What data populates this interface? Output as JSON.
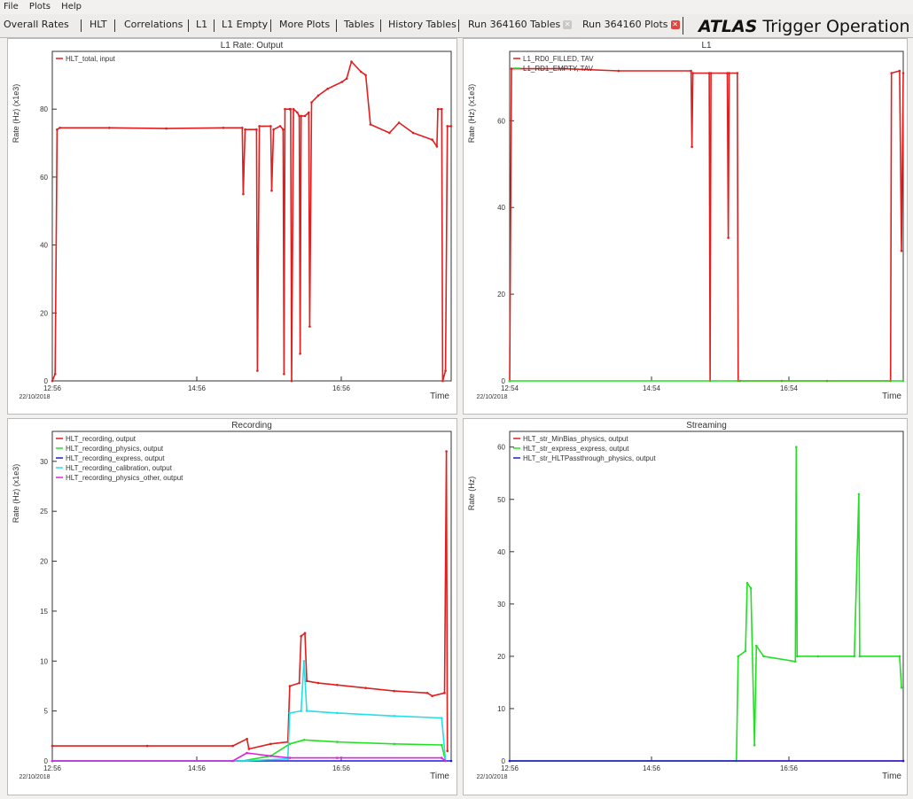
{
  "menu": [
    "File",
    "Plots",
    "Help"
  ],
  "tabs": [
    {
      "label": "Overall Rates"
    },
    {
      "label": "HLT"
    },
    {
      "label": "Correlations"
    },
    {
      "label": "L1"
    },
    {
      "label": "L1 Empty"
    },
    {
      "label": "More Plots"
    },
    {
      "label": "Tables"
    },
    {
      "label": "History Tables"
    },
    {
      "label": "Run 364160 Tables",
      "closable": true
    },
    {
      "label": "Run 364160 Plots",
      "closable": true,
      "active": true
    }
  ],
  "brand": {
    "bold": "ATLAS",
    "rest": " Trigger Operation"
  },
  "colors": {
    "red": "#e21e1e",
    "green": "#22e022",
    "blue": "#1a1ae0",
    "cyan": "#22e0e8",
    "magenta": "#e022e0"
  },
  "chart_data": [
    {
      "type": "line",
      "title": "L1 Rate: Output",
      "xlabel": "Time",
      "ylabel": "Rate (Hz) (x1e3)",
      "date_label": "22/10/2018",
      "x_ticks": [
        "12:56",
        "14:56",
        "16:56"
      ],
      "y_ticks": [
        0,
        20,
        40,
        60,
        80
      ],
      "ylim": [
        0,
        97
      ],
      "x_range": [
        "12:56",
        "18:02"
      ],
      "series": [
        {
          "name": "HLT_total, input",
          "color": "#e21e1e",
          "points": [
            [
              0,
              0
            ],
            [
              3,
              2
            ],
            [
              5,
              74
            ],
            [
              8,
              74.5
            ],
            [
              60,
              74.5
            ],
            [
              120,
              74.3
            ],
            [
              180,
              74.5
            ],
            [
              200,
              74.5
            ],
            [
              201,
              55
            ],
            [
              203,
              74
            ],
            [
              215,
              74
            ],
            [
              216,
              3
            ],
            [
              218,
              75
            ],
            [
              230,
              75
            ],
            [
              231,
              56
            ],
            [
              233,
              74
            ],
            [
              240,
              75
            ],
            [
              243,
              74
            ],
            [
              244,
              2
            ],
            [
              245,
              80
            ],
            [
              250,
              80
            ],
            [
              251,
              80
            ],
            [
              252,
              0
            ],
            [
              254,
              80
            ],
            [
              258,
              79
            ],
            [
              260,
              78
            ],
            [
              261,
              8
            ],
            [
              262,
              78
            ],
            [
              266,
              78
            ],
            [
              270,
              79
            ],
            [
              271,
              16
            ],
            [
              273,
              82
            ],
            [
              280,
              84
            ],
            [
              290,
              86
            ],
            [
              305,
              88
            ],
            [
              310,
              89
            ],
            [
              315,
              94
            ],
            [
              325,
              91
            ],
            [
              330,
              90
            ],
            [
              335,
              75.5
            ],
            [
              355,
              73
            ],
            [
              365,
              76
            ],
            [
              380,
              73
            ],
            [
              400,
              71
            ],
            [
              405,
              69
            ],
            [
              406,
              80
            ],
            [
              410,
              80
            ],
            [
              411,
              0
            ],
            [
              414,
              3
            ],
            [
              416,
              75
            ],
            [
              420,
              75
            ]
          ]
        }
      ]
    },
    {
      "type": "line",
      "title": "L1",
      "xlabel": "Time",
      "ylabel": "Rate (Hz) (x1e3)",
      "date_label": "22/10/2018",
      "x_ticks": [
        "12:54",
        "14:54",
        "16:54"
      ],
      "y_ticks": [
        0,
        20,
        40,
        60
      ],
      "ylim": [
        0,
        76
      ],
      "legend_labels": [
        "L1_RD0_FILLED, TAV",
        "L1_RD1_EMPTY, TAV"
      ],
      "series": [
        {
          "name": "L1_RD0_FILLED, TAV",
          "color": "#e21e1e",
          "points": [
            [
              0,
              0
            ],
            [
              2,
              72
            ],
            [
              60,
              72
            ],
            [
              120,
              71.5
            ],
            [
              200,
              71.5
            ],
            [
              201,
              54
            ],
            [
              202,
              71
            ],
            [
              220,
              71
            ],
            [
              221,
              0
            ],
            [
              222,
              71
            ],
            [
              240,
              71
            ],
            [
              241,
              33
            ],
            [
              242,
              71
            ],
            [
              251,
              71
            ],
            [
              252,
              0
            ],
            [
              254,
              0
            ],
            [
              300,
              0
            ],
            [
              350,
              0
            ],
            [
              420,
              0
            ],
            [
              421,
              71
            ],
            [
              430,
              71.5
            ],
            [
              432,
              30
            ],
            [
              434,
              71
            ]
          ]
        },
        {
          "name": "L1_RD1_EMPTY, TAV",
          "color": "#22e022",
          "points": [
            [
              0,
              0
            ],
            [
              434,
              0
            ]
          ]
        }
      ]
    },
    {
      "type": "line",
      "title": "Recording",
      "xlabel": "Time",
      "ylabel": "Rate (Hz) (x1e3)",
      "date_label": "22/10/2018",
      "x_ticks": [
        "12:56",
        "14:56",
        "16:56"
      ],
      "y_ticks": [
        0,
        5,
        10,
        15,
        20,
        25,
        30
      ],
      "ylim": [
        0,
        33
      ],
      "series": [
        {
          "name": "HLT_recording, output",
          "color": "#e21e1e",
          "points": [
            [
              0,
              1.5
            ],
            [
              100,
              1.5
            ],
            [
              190,
              1.5
            ],
            [
              205,
              2.2
            ],
            [
              207,
              1.2
            ],
            [
              230,
              1.7
            ],
            [
              248,
              1.9
            ],
            [
              250,
              7.5
            ],
            [
              260,
              7.8
            ],
            [
              262,
              12.5
            ],
            [
              266,
              12.8
            ],
            [
              268,
              8
            ],
            [
              280,
              7.8
            ],
            [
              300,
              7.6
            ],
            [
              330,
              7.3
            ],
            [
              360,
              7.0
            ],
            [
              395,
              6.8
            ],
            [
              400,
              6.5
            ],
            [
              413,
              6.8
            ],
            [
              415,
              31
            ],
            [
              416,
              1
            ]
          ]
        },
        {
          "name": "HLT_recording_physics, output",
          "color": "#22e022",
          "points": [
            [
              0,
              0
            ],
            [
              200,
              0
            ],
            [
              230,
              0.5
            ],
            [
              250,
              1.7
            ],
            [
              265,
              2.1
            ],
            [
              300,
              1.9
            ],
            [
              360,
              1.7
            ],
            [
              410,
              1.6
            ],
            [
              414,
              0
            ]
          ]
        },
        {
          "name": "HLT_recording_express, output",
          "color": "#1a1ae0",
          "points": [
            [
              0,
              0
            ],
            [
              420,
              0
            ]
          ]
        },
        {
          "name": "HLT_recording_calibration, output",
          "color": "#22e0e8",
          "points": [
            [
              0,
              0
            ],
            [
              200,
              0
            ],
            [
              248,
              0.2
            ],
            [
              250,
              4.8
            ],
            [
              262,
              5
            ],
            [
              265,
              10
            ],
            [
              268,
              5
            ],
            [
              300,
              4.8
            ],
            [
              360,
              4.5
            ],
            [
              410,
              4.3
            ],
            [
              414,
              0
            ]
          ]
        },
        {
          "name": "HLT_recording_physics_other, output",
          "color": "#e022e0",
          "points": [
            [
              0,
              0
            ],
            [
              190,
              0
            ],
            [
              205,
              0.8
            ],
            [
              230,
              0.5
            ],
            [
              250,
              0.3
            ],
            [
              300,
              0.3
            ],
            [
              410,
              0.3
            ],
            [
              414,
              0
            ]
          ]
        }
      ]
    },
    {
      "type": "line",
      "title": "Streaming",
      "xlabel": "Time",
      "ylabel": "Rate (Hz)",
      "date_label": "22/10/2018",
      "x_ticks": [
        "12:56",
        "14:56",
        "16:56"
      ],
      "y_ticks": [
        0,
        10,
        20,
        30,
        40,
        50,
        60
      ],
      "ylim": [
        0,
        63
      ],
      "series": [
        {
          "name": "HLT_str_MinBias_physics, output",
          "color": "#e21e1e",
          "points": [
            [
              0,
              0
            ],
            [
              434,
              0
            ]
          ]
        },
        {
          "name": "HLT_str_express_express, output",
          "color": "#22e022",
          "points": [
            [
              0,
              0
            ],
            [
              250,
              0
            ],
            [
              252,
              20
            ],
            [
              260,
              21
            ],
            [
              262,
              34
            ],
            [
              266,
              33
            ],
            [
              270,
              3
            ],
            [
              272,
              22
            ],
            [
              280,
              20
            ],
            [
              315,
              19
            ],
            [
              316,
              60
            ],
            [
              317,
              20
            ],
            [
              340,
              20
            ],
            [
              380,
              20
            ],
            [
              385,
              51
            ],
            [
              386,
              20
            ],
            [
              430,
              20
            ],
            [
              432,
              14
            ]
          ]
        },
        {
          "name": "HLT_str_HLTPassthrough_physics, output",
          "color": "#1a1ae0",
          "points": [
            [
              0,
              0
            ],
            [
              434,
              0
            ]
          ]
        }
      ]
    }
  ]
}
